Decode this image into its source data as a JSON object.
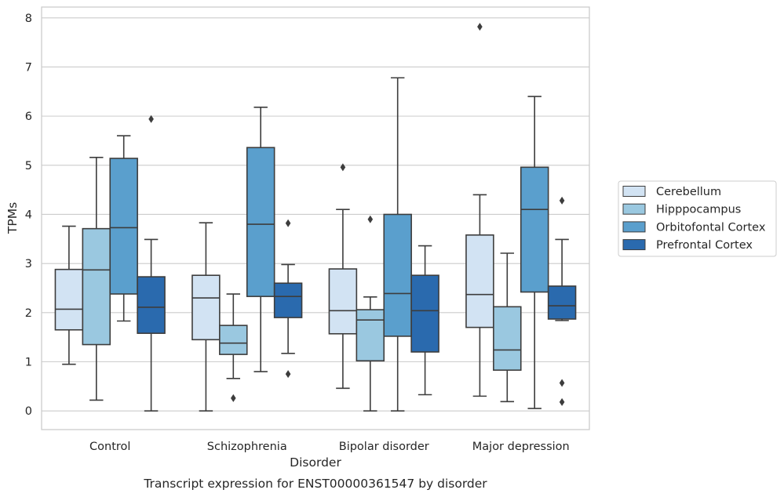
{
  "chart_data": {
    "type": "box",
    "caption": "Transcript expression for ENST00000361547 by disorder",
    "xlabel": "Disorder",
    "ylabel": "TPMs",
    "ylim": [
      -0.38,
      8.22
    ],
    "yticks": [
      "0",
      "1",
      "2",
      "3",
      "4",
      "5",
      "6",
      "7",
      "8"
    ],
    "grid": "horizontal",
    "legend_position": "right",
    "categories": [
      "Control",
      "Schizophrenia",
      "Bipolar disorder",
      "Major depression"
    ],
    "series": [
      {
        "name": "Cerebellum",
        "color": "#d2e3f3",
        "boxes": [
          {
            "whislo": 0.95,
            "q1": 1.65,
            "med": 2.07,
            "q3": 2.88,
            "whishi": 3.76,
            "fliers": []
          },
          {
            "whislo": 0.0,
            "q1": 1.45,
            "med": 2.3,
            "q3": 2.76,
            "whishi": 3.83,
            "fliers": []
          },
          {
            "whislo": 0.46,
            "q1": 1.57,
            "med": 2.04,
            "q3": 2.89,
            "whishi": 4.1,
            "fliers": [
              4.96
            ]
          },
          {
            "whislo": 0.3,
            "q1": 1.7,
            "med": 2.37,
            "q3": 3.58,
            "whishi": 4.4,
            "fliers": [
              7.82
            ]
          }
        ]
      },
      {
        "name": "Hipppocampus",
        "color": "#9ac8e0",
        "boxes": [
          {
            "whislo": 0.22,
            "q1": 1.35,
            "med": 2.87,
            "q3": 3.71,
            "whishi": 5.16,
            "fliers": []
          },
          {
            "whislo": 0.66,
            "q1": 1.15,
            "med": 1.38,
            "q3": 1.74,
            "whishi": 2.38,
            "fliers": [
              0.26
            ]
          },
          {
            "whislo": 0.0,
            "q1": 1.02,
            "med": 1.85,
            "q3": 2.06,
            "whishi": 2.32,
            "fliers": [
              3.9
            ]
          },
          {
            "whislo": 0.19,
            "q1": 0.83,
            "med": 1.24,
            "q3": 2.12,
            "whishi": 3.21,
            "fliers": []
          }
        ]
      },
      {
        "name": "Orbitofontal Cortex",
        "color": "#5a9fcd",
        "boxes": [
          {
            "whislo": 1.83,
            "q1": 2.38,
            "med": 3.73,
            "q3": 5.14,
            "whishi": 5.6,
            "fliers": []
          },
          {
            "whislo": 0.8,
            "q1": 2.33,
            "med": 3.8,
            "q3": 5.36,
            "whishi": 6.18,
            "fliers": []
          },
          {
            "whislo": 0.0,
            "q1": 1.52,
            "med": 2.39,
            "q3": 4.0,
            "whishi": 6.78,
            "fliers": []
          },
          {
            "whislo": 0.05,
            "q1": 2.42,
            "med": 4.1,
            "q3": 4.96,
            "whishi": 6.4,
            "fliers": []
          }
        ]
      },
      {
        "name": "Prefrontal Cortex",
        "color": "#2a6aae",
        "boxes": [
          {
            "whislo": 0.0,
            "q1": 1.58,
            "med": 2.11,
            "q3": 2.73,
            "whishi": 3.49,
            "fliers": [
              5.94
            ]
          },
          {
            "whislo": 1.17,
            "q1": 1.9,
            "med": 2.33,
            "q3": 2.6,
            "whishi": 2.98,
            "fliers": [
              3.82,
              0.75
            ]
          },
          {
            "whislo": 0.33,
            "q1": 1.2,
            "med": 2.04,
            "q3": 2.76,
            "whishi": 3.36,
            "fliers": []
          },
          {
            "whislo": 1.84,
            "q1": 1.87,
            "med": 2.14,
            "q3": 2.54,
            "whishi": 3.49,
            "fliers": [
              4.28,
              0.57,
              0.18
            ]
          }
        ]
      }
    ]
  }
}
